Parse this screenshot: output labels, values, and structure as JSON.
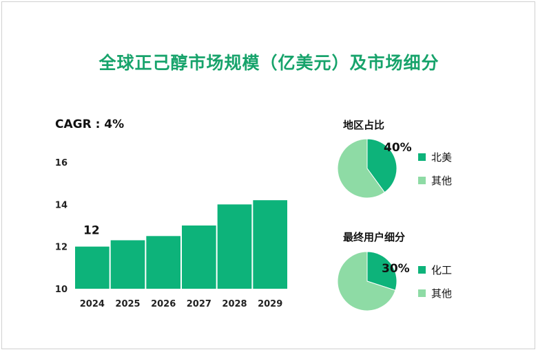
{
  "title": "全球正己醇市场规模（亿美元）及市场细分",
  "cagr_label": "CAGR : 4%",
  "colors": {
    "primary": "#0db37a",
    "secondary": "#8edba5",
    "title": "#17a36b"
  },
  "chart_data": [
    {
      "type": "bar",
      "categories": [
        "2024",
        "2025",
        "2026",
        "2027",
        "2028",
        "2029"
      ],
      "values": [
        12.0,
        12.3,
        12.5,
        13.0,
        14.0,
        14.2
      ],
      "data_labels": [
        "12",
        "",
        "",
        "",
        "",
        ""
      ],
      "ylim": [
        10,
        16
      ],
      "yticks": [
        "10",
        "12",
        "14",
        "16"
      ],
      "grid": false
    },
    {
      "type": "pie",
      "title": "地区占比",
      "slices": [
        {
          "label": "北美",
          "value": 40
        },
        {
          "label": "其他",
          "value": 60
        }
      ],
      "highlight_label": "40%",
      "legend_position": "right"
    },
    {
      "type": "pie",
      "title": "最终用户细分",
      "slices": [
        {
          "label": "化工",
          "value": 30
        },
        {
          "label": "其他",
          "value": 70
        }
      ],
      "highlight_label": "30%",
      "legend_position": "right"
    }
  ]
}
